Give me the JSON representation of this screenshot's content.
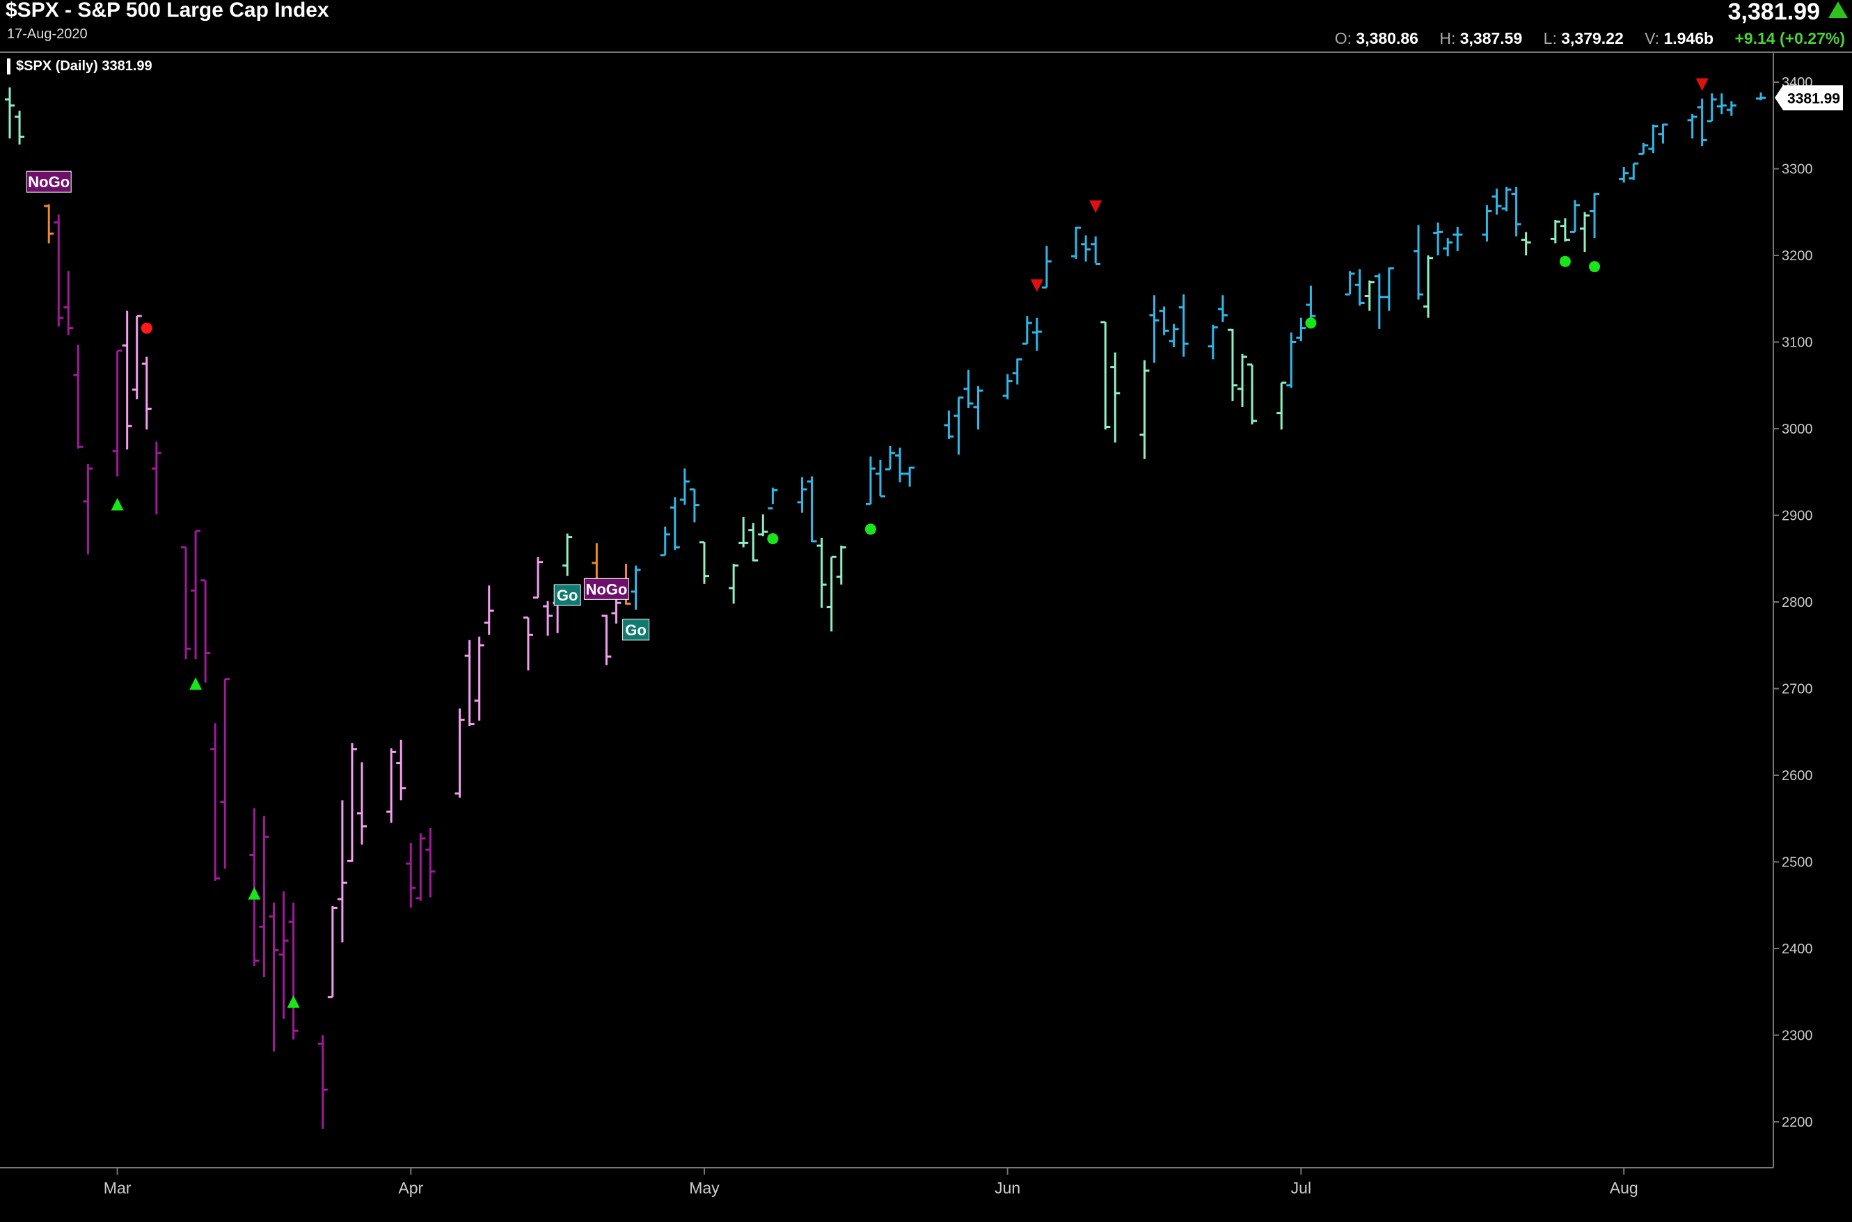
{
  "header": {
    "title": "$SPX - S&P 500 Large Cap Index",
    "date": "17-Aug-2020",
    "last_price": "3,381.99",
    "ohlc": [
      {
        "label": "O:",
        "value": "3,380.86"
      },
      {
        "label": "H:",
        "value": "3,387.59"
      },
      {
        "label": "L:",
        "value": "3,379.22"
      },
      {
        "label": "V:",
        "value": "1.946b"
      }
    ],
    "change": "+9.14 (+0.27%)"
  },
  "legend_label": "$SPX (Daily) 3381.99",
  "price_tag": "3381.99",
  "colors": {
    "strong_go": "#2fb8e8",
    "weak_go": "#8ff0c4",
    "strong_nogo": "#a01a9a",
    "weak_nogo": "#f39ef0",
    "go_fish": "#f08a2c",
    "up_triangle": "#19e619",
    "down_triangle": "#e01010",
    "dot_green": "#19e619",
    "dot_red": "#ff1a1a"
  },
  "chart_data": {
    "type": "ohlc_bar",
    "title": "$SPX - S&P 500 Large Cap Index",
    "x_tick_labels": [
      "Mar",
      "Apr",
      "May",
      "Jun",
      "Jul",
      "Aug"
    ],
    "y_ticks": [
      2200,
      2300,
      2400,
      2500,
      2600,
      2700,
      2800,
      2900,
      3000,
      3100,
      3200,
      3300,
      3400
    ],
    "ylim": [
      2170,
      3420
    ],
    "grid": false,
    "bars": [
      [
        "2020-02-20",
        3380,
        3394,
        3335,
        3373,
        "weak_go"
      ],
      [
        "2020-02-21",
        3360,
        3367,
        3328,
        3337,
        "weak_go"
      ],
      [
        "2020-02-24",
        3257,
        3259,
        3214,
        3225,
        "go_fish"
      ],
      [
        "2020-02-25",
        3238,
        3247,
        3118,
        3128,
        "strong_nogo"
      ],
      [
        "2020-02-26",
        3140,
        3182,
        3108,
        3116,
        "strong_nogo"
      ],
      [
        "2020-02-27",
        3062,
        3097,
        2977,
        2979,
        "strong_nogo"
      ],
      [
        "2020-02-28",
        2916,
        2959,
        2855,
        2954,
        "strong_nogo"
      ],
      [
        "2020-03-02",
        2974,
        3090,
        2945,
        3090,
        "strong_nogo"
      ],
      [
        "2020-03-03",
        3096,
        3136,
        2976,
        3003,
        "weak_nogo"
      ],
      [
        "2020-03-04",
        3045,
        3130,
        3034,
        3130,
        "weak_nogo"
      ],
      [
        "2020-03-05",
        3075,
        3083,
        2999,
        3023,
        "weak_nogo"
      ],
      [
        "2020-03-06",
        2954,
        2985,
        2901,
        2972,
        "strong_nogo"
      ],
      [
        "2020-03-09",
        2863,
        2863,
        2734,
        2746,
        "strong_nogo"
      ],
      [
        "2020-03-10",
        2813,
        2882,
        2734,
        2882,
        "strong_nogo"
      ],
      [
        "2020-03-11",
        2825,
        2825,
        2707,
        2741,
        "strong_nogo"
      ],
      [
        "2020-03-12",
        2630,
        2660,
        2478,
        2481,
        "strong_nogo"
      ],
      [
        "2020-03-13",
        2569,
        2711,
        2492,
        2711,
        "strong_nogo"
      ],
      [
        "2020-03-16",
        2508,
        2562,
        2380,
        2386,
        "strong_nogo"
      ],
      [
        "2020-03-17",
        2425,
        2553,
        2367,
        2529,
        "strong_nogo"
      ],
      [
        "2020-03-18",
        2437,
        2453,
        2281,
        2398,
        "strong_nogo"
      ],
      [
        "2020-03-19",
        2393,
        2466,
        2319,
        2409,
        "strong_nogo"
      ],
      [
        "2020-03-20",
        2431,
        2453,
        2295,
        2305,
        "strong_nogo"
      ],
      [
        "2020-03-23",
        2290,
        2300,
        2192,
        2237,
        "strong_nogo"
      ],
      [
        "2020-03-24",
        2344,
        2449,
        2344,
        2447,
        "weak_nogo"
      ],
      [
        "2020-03-25",
        2457,
        2571,
        2407,
        2476,
        "weak_nogo"
      ],
      [
        "2020-03-26",
        2501,
        2637,
        2500,
        2630,
        "weak_nogo"
      ],
      [
        "2020-03-27",
        2556,
        2615,
        2520,
        2541,
        "weak_nogo"
      ],
      [
        "2020-03-30",
        2558,
        2631,
        2545,
        2627,
        "weak_nogo"
      ],
      [
        "2020-03-31",
        2614,
        2641,
        2571,
        2585,
        "weak_nogo"
      ],
      [
        "2020-04-01",
        2498,
        2522,
        2447,
        2470,
        "strong_nogo"
      ],
      [
        "2020-04-02",
        2458,
        2533,
        2455,
        2527,
        "strong_nogo"
      ],
      [
        "2020-04-03",
        2514,
        2539,
        2459,
        2489,
        "strong_nogo"
      ],
      [
        "2020-04-06",
        2579,
        2677,
        2574,
        2664,
        "weak_nogo"
      ],
      [
        "2020-04-07",
        2738,
        2756,
        2657,
        2659,
        "weak_nogo"
      ],
      [
        "2020-04-08",
        2686,
        2760,
        2663,
        2750,
        "weak_nogo"
      ],
      [
        "2020-04-09",
        2776,
        2819,
        2762,
        2790,
        "weak_nogo"
      ],
      [
        "2020-04-13",
        2782,
        2782,
        2721,
        2762,
        "weak_nogo"
      ],
      [
        "2020-04-14",
        2805,
        2852,
        2805,
        2846,
        "weak_nogo"
      ],
      [
        "2020-04-15",
        2795,
        2801,
        2761,
        2784,
        "weak_nogo"
      ],
      [
        "2020-04-16",
        2799,
        2806,
        2764,
        2800,
        "weak_nogo"
      ],
      [
        "2020-04-17",
        2842,
        2879,
        2830,
        2875,
        "weak_go"
      ],
      [
        "2020-04-20",
        2845,
        2868,
        2820,
        2823,
        "go_fish"
      ],
      [
        "2020-04-21",
        2784,
        2785,
        2727,
        2737,
        "weak_nogo"
      ],
      [
        "2020-04-22",
        2787,
        2815,
        2775,
        2799,
        "weak_nogo"
      ],
      [
        "2020-04-23",
        2810,
        2844,
        2797,
        2798,
        "go_fish"
      ],
      [
        "2020-04-24",
        2812,
        2842,
        2791,
        2837,
        "strong_go"
      ],
      [
        "2020-04-27",
        2854,
        2887,
        2854,
        2878,
        "strong_go"
      ],
      [
        "2020-04-28",
        2909,
        2921,
        2860,
        2863,
        "strong_go"
      ],
      [
        "2020-04-29",
        2918,
        2954,
        2912,
        2939,
        "strong_go"
      ],
      [
        "2020-04-30",
        2930,
        2930,
        2892,
        2912,
        "strong_go"
      ],
      [
        "2020-05-01",
        2869,
        2869,
        2821,
        2830,
        "weak_go"
      ],
      [
        "2020-05-04",
        2816,
        2844,
        2798,
        2842,
        "weak_go"
      ],
      [
        "2020-05-05",
        2868,
        2898,
        2863,
        2868,
        "weak_go"
      ],
      [
        "2020-05-06",
        2883,
        2891,
        2847,
        2848,
        "weak_go"
      ],
      [
        "2020-05-07",
        2878,
        2901,
        2876,
        2881,
        "weak_go"
      ],
      [
        "2020-05-08",
        2908,
        2932,
        2913,
        2929,
        "strong_go"
      ],
      [
        "2020-05-11",
        2915,
        2944,
        2903,
        2930,
        "strong_go"
      ],
      [
        "2020-05-12",
        2939,
        2945,
        2869,
        2870,
        "strong_go"
      ],
      [
        "2020-05-13",
        2865,
        2874,
        2793,
        2820,
        "weak_go"
      ],
      [
        "2020-05-14",
        2794,
        2852,
        2766,
        2852,
        "weak_go"
      ],
      [
        "2020-05-15",
        2829,
        2865,
        2820,
        2863,
        "weak_go"
      ],
      [
        "2020-05-18",
        2913,
        2968,
        2913,
        2954,
        "strong_go"
      ],
      [
        "2020-05-19",
        2948,
        2964,
        2922,
        2922,
        "strong_go"
      ],
      [
        "2020-05-20",
        2953,
        2980,
        2953,
        2972,
        "strong_go"
      ],
      [
        "2020-05-21",
        2969,
        2978,
        2938,
        2948,
        "strong_go"
      ],
      [
        "2020-05-22",
        2948,
        2956,
        2933,
        2955,
        "strong_go"
      ],
      [
        "2020-05-26",
        3004,
        3021,
        2988,
        2991,
        "strong_go"
      ],
      [
        "2020-05-27",
        3015,
        3036,
        2970,
        3036,
        "strong_go"
      ],
      [
        "2020-05-28",
        3046,
        3068,
        3024,
        3029,
        "strong_go"
      ],
      [
        "2020-05-29",
        3025,
        3049,
        2999,
        3044,
        "strong_go"
      ],
      [
        "2020-06-01",
        3038,
        3063,
        3034,
        3055,
        "strong_go"
      ],
      [
        "2020-06-02",
        3064,
        3081,
        3051,
        3080,
        "strong_go"
      ],
      [
        "2020-06-03",
        3098,
        3130,
        3098,
        3122,
        "strong_go"
      ],
      [
        "2020-06-04",
        3111,
        3128,
        3090,
        3112,
        "strong_go"
      ],
      [
        "2020-06-05",
        3163,
        3211,
        3163,
        3193,
        "strong_go"
      ],
      [
        "2020-06-08",
        3199,
        3233,
        3196,
        3232,
        "strong_go"
      ],
      [
        "2020-06-09",
        3213,
        3223,
        3193,
        3207,
        "strong_go"
      ],
      [
        "2020-06-10",
        3213,
        3222,
        3191,
        3190,
        "strong_go"
      ],
      [
        "2020-06-11",
        3123,
        3123,
        2999,
        3002,
        "weak_go"
      ],
      [
        "2020-06-12",
        3071,
        3088,
        2984,
        3041,
        "weak_go"
      ],
      [
        "2020-06-15",
        2993,
        3079,
        2965,
        3067,
        "weak_go"
      ],
      [
        "2020-06-16",
        3131,
        3154,
        3076,
        3125,
        "strong_go"
      ],
      [
        "2020-06-17",
        3136,
        3141,
        3108,
        3113,
        "strong_go"
      ],
      [
        "2020-06-18",
        3101,
        3121,
        3094,
        3115,
        "strong_go"
      ],
      [
        "2020-06-19",
        3140,
        3155,
        3083,
        3098,
        "strong_go"
      ],
      [
        "2020-06-22",
        3095,
        3120,
        3080,
        3117,
        "strong_go"
      ],
      [
        "2020-06-23",
        3138,
        3154,
        3123,
        3131,
        "strong_go"
      ],
      [
        "2020-06-24",
        3114,
        3115,
        3032,
        3050,
        "weak_go"
      ],
      [
        "2020-06-25",
        3046,
        3086,
        3025,
        3083,
        "weak_go"
      ],
      [
        "2020-06-26",
        3074,
        3074,
        3005,
        3009,
        "weak_go"
      ],
      [
        "2020-06-29",
        3018,
        3053,
        2999,
        3053,
        "weak_go"
      ],
      [
        "2020-06-30",
        3050,
        3111,
        3047,
        3100,
        "strong_go"
      ],
      [
        "2020-07-01",
        3105,
        3128,
        3101,
        3116,
        "strong_go"
      ],
      [
        "2020-07-02",
        3143,
        3165,
        3124,
        3130,
        "strong_go"
      ],
      [
        "2020-07-06",
        3155,
        3182,
        3155,
        3179,
        "strong_go"
      ],
      [
        "2020-07-07",
        3166,
        3184,
        3142,
        3145,
        "strong_go"
      ],
      [
        "2020-07-08",
        3153,
        3171,
        3136,
        3169,
        "weak_go"
      ],
      [
        "2020-07-09",
        3176,
        3179,
        3115,
        3152,
        "strong_go"
      ],
      [
        "2020-07-10",
        3152,
        3186,
        3136,
        3185,
        "strong_go"
      ],
      [
        "2020-07-13",
        3205,
        3235,
        3149,
        3155,
        "strong_go"
      ],
      [
        "2020-07-14",
        3141,
        3200,
        3128,
        3197,
        "weak_go"
      ],
      [
        "2020-07-15",
        3226,
        3238,
        3200,
        3227,
        "strong_go"
      ],
      [
        "2020-07-16",
        3208,
        3220,
        3199,
        3215,
        "strong_go"
      ],
      [
        "2020-07-17",
        3224,
        3233,
        3205,
        3224,
        "strong_go"
      ],
      [
        "2020-07-20",
        3224,
        3258,
        3216,
        3251,
        "strong_go"
      ],
      [
        "2020-07-21",
        3268,
        3277,
        3247,
        3257,
        "strong_go"
      ],
      [
        "2020-07-22",
        3254,
        3279,
        3251,
        3276,
        "strong_go"
      ],
      [
        "2020-07-23",
        3271,
        3279,
        3222,
        3236,
        "strong_go"
      ],
      [
        "2020-07-24",
        3218,
        3227,
        3200,
        3215,
        "weak_go"
      ],
      [
        "2020-07-27",
        3219,
        3241,
        3214,
        3239,
        "weak_go"
      ],
      [
        "2020-07-28",
        3234,
        3243,
        3216,
        3218,
        "weak_go"
      ],
      [
        "2020-07-29",
        3227,
        3264,
        3227,
        3258,
        "strong_go"
      ],
      [
        "2020-07-30",
        3231,
        3250,
        3204,
        3246,
        "weak_go"
      ],
      [
        "2020-07-31",
        3251,
        3272,
        3220,
        3271,
        "strong_go"
      ],
      [
        "2020-08-03",
        3288,
        3302,
        3284,
        3295,
        "strong_go"
      ],
      [
        "2020-08-04",
        3289,
        3306,
        3287,
        3306,
        "strong_go"
      ],
      [
        "2020-08-05",
        3317,
        3330,
        3317,
        3327,
        "strong_go"
      ],
      [
        "2020-08-06",
        3323,
        3351,
        3318,
        3349,
        "strong_go"
      ],
      [
        "2020-08-07",
        3340,
        3352,
        3329,
        3351,
        "strong_go"
      ],
      [
        "2020-08-10",
        3356,
        3363,
        3335,
        3360,
        "strong_go"
      ],
      [
        "2020-08-11",
        3371,
        3381,
        3326,
        3333,
        "strong_go"
      ],
      [
        "2020-08-12",
        3355,
        3387,
        3355,
        3380,
        "strong_go"
      ],
      [
        "2020-08-13",
        3372,
        3387,
        3363,
        3373,
        "strong_go"
      ],
      [
        "2020-08-14",
        3368,
        3378,
        3361,
        3373,
        "strong_go"
      ],
      [
        "2020-08-17",
        3381,
        3388,
        3379,
        3382,
        "strong_go"
      ]
    ],
    "markers": [
      {
        "date": "2020-03-02",
        "value": 2912,
        "kind": "up_triangle"
      },
      {
        "date": "2020-03-10",
        "value": 2705,
        "kind": "up_triangle"
      },
      {
        "date": "2020-03-16",
        "value": 2463,
        "kind": "up_triangle"
      },
      {
        "date": "2020-03-20",
        "value": 2338,
        "kind": "up_triangle"
      },
      {
        "date": "2020-03-05",
        "value": 3116,
        "kind": "dot_red"
      },
      {
        "date": "2020-04-24",
        "value": 2763,
        "kind": "dot_green"
      },
      {
        "date": "2020-05-08",
        "value": 2873,
        "kind": "dot_green"
      },
      {
        "date": "2020-05-18",
        "value": 2884,
        "kind": "dot_green"
      },
      {
        "date": "2020-06-04",
        "value": 3166,
        "kind": "down_triangle"
      },
      {
        "date": "2020-06-10",
        "value": 3257,
        "kind": "down_triangle"
      },
      {
        "date": "2020-07-02",
        "value": 3122,
        "kind": "dot_green"
      },
      {
        "date": "2020-07-28",
        "value": 3193,
        "kind": "dot_green"
      },
      {
        "date": "2020-07-31",
        "value": 3187,
        "kind": "dot_green"
      },
      {
        "date": "2020-08-11",
        "value": 3398,
        "kind": "down_triangle"
      }
    ],
    "annotations": [
      {
        "date": "2020-02-24",
        "value": 3285,
        "text": "NoGo",
        "style": "nogo"
      },
      {
        "date": "2020-04-17",
        "value": 2808,
        "text": "Go",
        "style": "go"
      },
      {
        "date": "2020-04-21",
        "value": 2815,
        "text": "NoGo",
        "style": "nogo"
      },
      {
        "date": "2020-04-24",
        "value": 2768,
        "text": "Go",
        "style": "go"
      }
    ]
  }
}
